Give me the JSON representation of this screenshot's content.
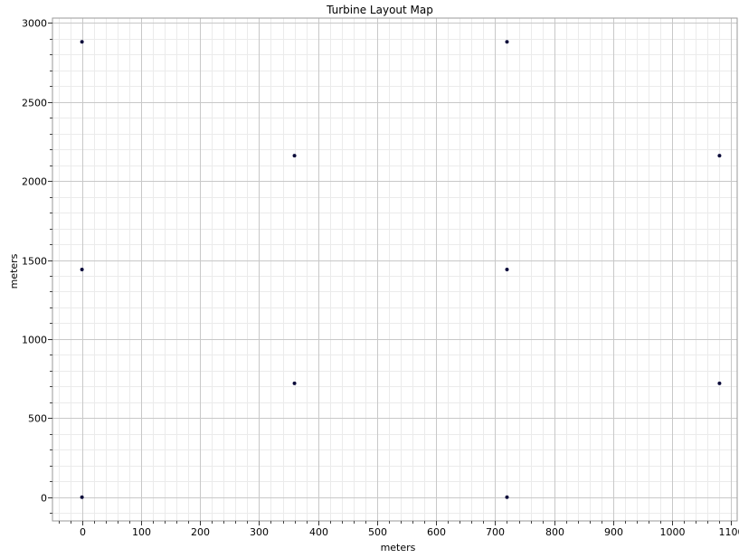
{
  "chart_data": {
    "type": "scatter",
    "title": "Turbine Layout Map",
    "xlabel": "meters",
    "ylabel": "meters",
    "xlim": [
      -50,
      1110
    ],
    "ylim": [
      -150,
      3030
    ],
    "x_ticks": [
      0,
      100,
      200,
      300,
      400,
      500,
      600,
      700,
      800,
      900,
      1000,
      1100
    ],
    "y_ticks": [
      0,
      500,
      1000,
      1500,
      2000,
      2500,
      3000
    ],
    "x_minor_step": 20,
    "y_minor_step": 100,
    "grid": true,
    "legend": "none",
    "marker_color": "#0b0b3a",
    "points": [
      {
        "x": 0,
        "y": 0
      },
      {
        "x": 0,
        "y": 1440
      },
      {
        "x": 0,
        "y": 2880
      },
      {
        "x": 360,
        "y": 720
      },
      {
        "x": 360,
        "y": 2160
      },
      {
        "x": 720,
        "y": 0
      },
      {
        "x": 720,
        "y": 1440
      },
      {
        "x": 720,
        "y": 2880
      },
      {
        "x": 1080,
        "y": 720
      },
      {
        "x": 1080,
        "y": 2160
      }
    ]
  }
}
